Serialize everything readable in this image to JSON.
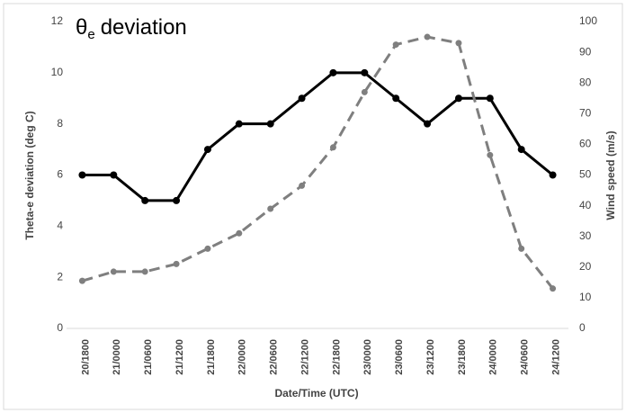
{
  "chart_data": {
    "type": "line",
    "title": [
      "θ",
      "e",
      "deviation"
    ],
    "ylabel": "Theta-e deviation (deg C)",
    "y2label": "Wind speed (m/s)",
    "xlabel": "Date/Time (UTC)",
    "categories": [
      "20/1800",
      "21/0000",
      "21/0600",
      "21/1200",
      "21/1800",
      "22/0000",
      "22/0600",
      "22/1200",
      "22/1800",
      "23/0000",
      "23/0600",
      "23/1200",
      "23/1800",
      "24/0000",
      "24/0600",
      "24/1200"
    ],
    "series": [
      {
        "name": "Theta-e deviation",
        "color": "#000000",
        "dash": false,
        "values": [
          6,
          6,
          5,
          5,
          7,
          8,
          8,
          9,
          10,
          10,
          9,
          8,
          9,
          9,
          7,
          6
        ]
      },
      {
        "name": "Wind speed",
        "color": "#7f7f7f",
        "dash": true,
        "axis": "y2",
        "values": [
          15.5,
          18.5,
          18.5,
          21,
          26,
          31,
          39,
          46.5,
          59,
          77,
          92.5,
          95,
          93,
          56.5,
          26,
          13
        ]
      }
    ],
    "ylim": [
      0,
      12
    ],
    "yticks": [
      0,
      2,
      4,
      6,
      8,
      10,
      12
    ],
    "y2lim": [
      0,
      100
    ],
    "y2ticks": [
      0,
      10,
      20,
      30,
      40,
      50,
      60,
      70,
      80,
      90,
      100
    ],
    "grid": false
  }
}
